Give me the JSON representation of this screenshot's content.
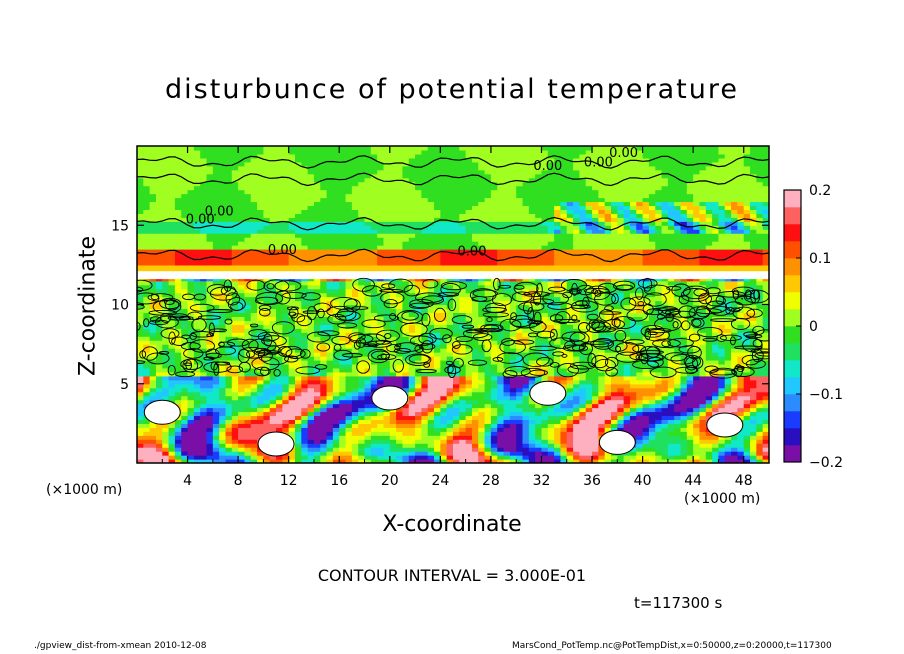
{
  "chart_data": {
    "type": "heatmap",
    "title": "disturbunce of potential temperature",
    "xlabel": "X-coordinate",
    "ylabel": "Z-coordinate",
    "x_unit_left": "(×1000 m)",
    "x_unit_right": "(×1000 m)",
    "xlim": [
      0,
      50
    ],
    "ylim": [
      0,
      20
    ],
    "x_ticks": [
      4,
      8,
      12,
      16,
      20,
      24,
      28,
      32,
      36,
      40,
      44,
      48
    ],
    "x_tick_labels": [
      "4",
      "8",
      "12",
      "16",
      "20",
      "24",
      "28",
      "32",
      "36",
      "40",
      "44",
      "48"
    ],
    "y_ticks": [
      5,
      10,
      15
    ],
    "y_tick_labels": [
      "5",
      "10",
      "15"
    ],
    "colorbar": {
      "range": [
        -0.2,
        0.2
      ],
      "tick_values": [
        0.2,
        0.1,
        0,
        -0.1,
        -0.2
      ],
      "tick_labels": [
        "0.2",
        "0.1",
        "0",
        "−0.1",
        "−0.2"
      ],
      "colors": [
        "#7a0fa8",
        "#2a0fc0",
        "#1a3cff",
        "#2a8cff",
        "#20c8ff",
        "#10e8c8",
        "#20e060",
        "#30e020",
        "#a0ff20",
        "#f0ff00",
        "#ffc800",
        "#ff9000",
        "#ff5000",
        "#ff1010",
        "#ff6060",
        "#ffb0c0"
      ]
    },
    "contour_labels": [
      {
        "x": 32.5,
        "z": 18.5,
        "text": "0.00"
      },
      {
        "x": 36.5,
        "z": 18.7,
        "text": "0.00"
      },
      {
        "x": 38.5,
        "z": 19.3,
        "text": "0.00"
      },
      {
        "x": 6.5,
        "z": 15.6,
        "text": "0.00"
      },
      {
        "x": 5.0,
        "z": 15.1,
        "text": "0.00"
      },
      {
        "x": 11.5,
        "z": 13.2,
        "text": "0.00"
      },
      {
        "x": 26.5,
        "z": 13.1,
        "text": "0.00"
      },
      {
        "x": 48.2,
        "z": 10.3,
        "text": "0.00"
      }
    ],
    "contour_interval": "CONTOUR INTERVAL = 3.000E-01",
    "time": "t=117300 s"
  },
  "footer": {
    "left": "./gpview_dist-from-xmean  2010-12-08",
    "right": "MarsCond_PotTemp.nc@PotTempDist,x=0:50000,z=0:20000,t=117300"
  }
}
